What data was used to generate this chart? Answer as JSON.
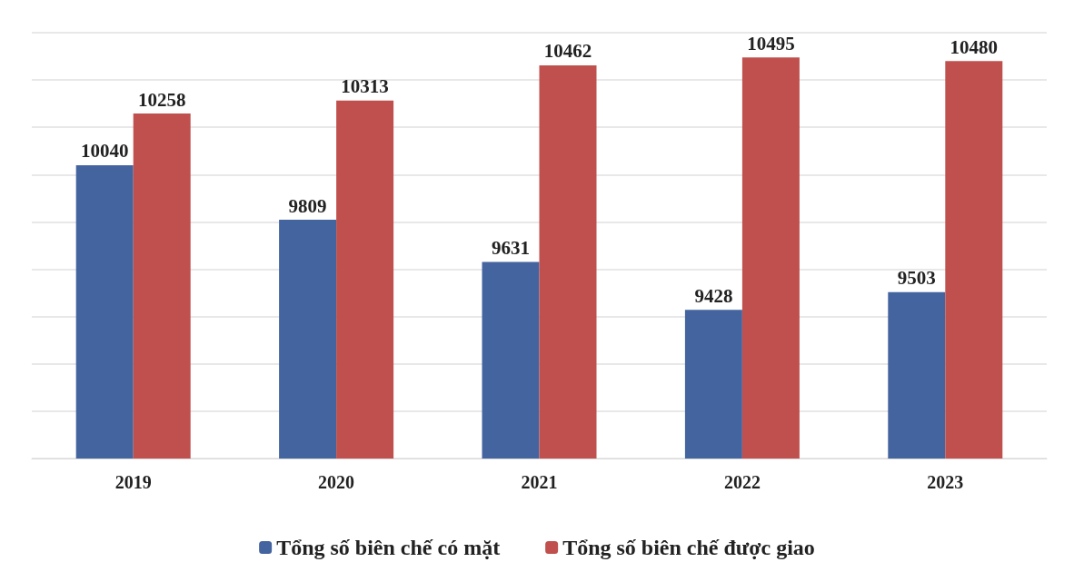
{
  "chart_data": {
    "type": "bar",
    "categories": [
      "2019",
      "2020",
      "2021",
      "2022",
      "2023"
    ],
    "series": [
      {
        "name": "Tổng số biên chế có mặt",
        "color": "#44649f",
        "values": [
          10040,
          9809,
          9631,
          9428,
          9503
        ]
      },
      {
        "name": "Tổng số biên chế được giao",
        "color": "#c0504d",
        "values": [
          10258,
          10313,
          10462,
          10495,
          10480
        ]
      }
    ],
    "ylim": [
      8800,
      10600
    ],
    "yticks": [
      {
        "value": 8800,
        "label": null
      },
      {
        "value": 9000,
        "label": null
      },
      {
        "value": 9200,
        "label": null
      },
      {
        "value": 9400,
        "label": null
      },
      {
        "value": 9600,
        "label": null
      },
      {
        "value": 9800,
        "label": null
      },
      {
        "value": 10000,
        "label": null
      },
      {
        "value": 10200,
        "label": null
      },
      {
        "value": 10400,
        "label": null
      },
      {
        "value": 10600,
        "label": null
      }
    ],
    "tick_labels": "x",
    "grid": "y",
    "legend": "bottom",
    "data_labels": true
  }
}
